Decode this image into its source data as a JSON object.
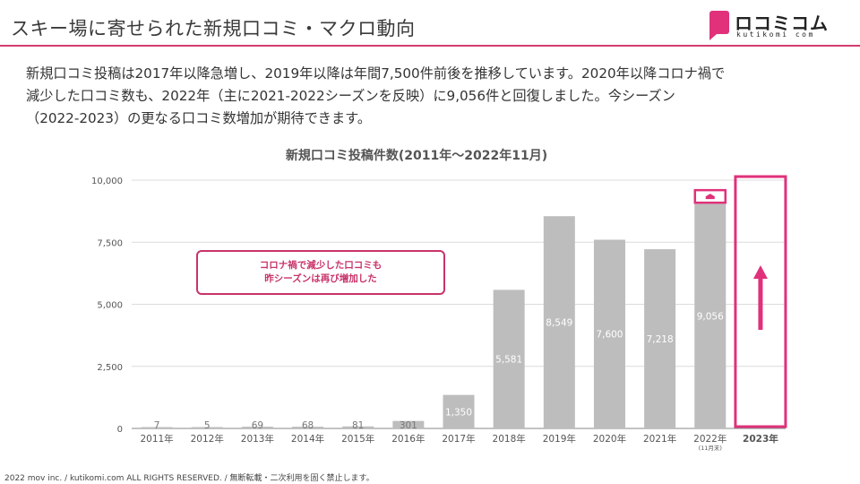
{
  "header": {
    "title": "スキー場に寄せられた新規口コミ・マクロ動向",
    "logo_text": "ロコミコム",
    "logo_sub": "kutikomi com"
  },
  "summary": {
    "lines": [
      "新規口コミ投稿は2017年以降急増し、2019年以降は年間7,500件前後を推移しています。2020年以降コロナ禍で",
      "減少した口コミ数も、2022年（主に2021-2022シーズンを反映）に9,056件と回復しました。今シーズン",
      "（2022-2023）の更なる口コミ数増加が期待できます。"
    ]
  },
  "annotation": {
    "line1": "コロナ禍で減少した口コミも",
    "line2": "昨シーズンは再び増加した"
  },
  "footer": {
    "text": "2022 mov inc. / kutikomi.com ALL RIGHTS RESERVED. / 無断転載・二次利用を固く禁止します。"
  },
  "chart_data": {
    "type": "bar",
    "title": "新規口コミ投稿件数(2011年〜2022年11月)",
    "categories": [
      "2011年",
      "2012年",
      "2013年",
      "2014年",
      "2015年",
      "2016年",
      "2017年",
      "2018年",
      "2019年",
      "2020年",
      "2021年",
      "2022年",
      "2023年"
    ],
    "category_notes": {
      "2022年": "(11月末)"
    },
    "values": [
      7,
      5,
      69,
      68,
      81,
      301,
      1350,
      5581,
      8549,
      7600,
      7218,
      9056,
      null
    ],
    "data_labels": [
      "7",
      "5",
      "69",
      "68",
      "81",
      "301",
      "1,350",
      "5,581",
      "8,549",
      "7,600",
      "7,218",
      "9,056",
      ""
    ],
    "yticks": [
      "0",
      "2,500",
      "5,000",
      "7,500",
      "10,000"
    ],
    "ytick_values": [
      0,
      2500,
      5000,
      7500,
      10000
    ],
    "ylim": [
      0,
      10000
    ],
    "grid": true,
    "bar_color": "#bdbdbd",
    "accent_color": "#e0317a",
    "highlight_category": "2023年"
  }
}
